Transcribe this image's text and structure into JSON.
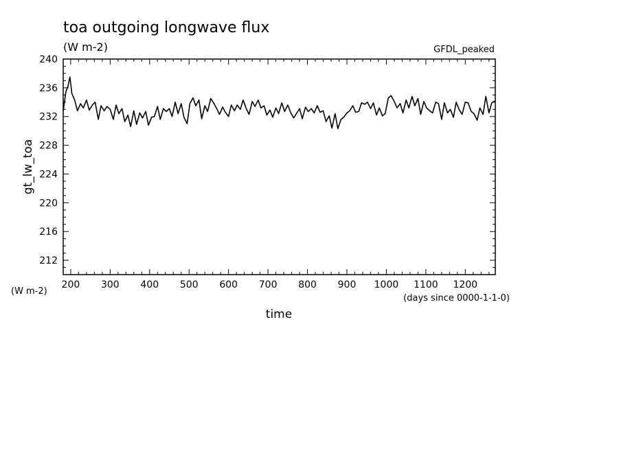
{
  "chart_data": {
    "type": "line",
    "title": "toa outgoing longwave flux",
    "units": "(W m-2)",
    "label_top_right": "GFDL_peaked",
    "ylabel": "gt_lw_toa",
    "ylabel_units": "(W m-2)",
    "xlabel": "time",
    "xlabel_units": "(days since 0000-1-1-0)",
    "xlim": [
      181,
      1276
    ],
    "ylim": [
      210,
      240
    ],
    "x_ticks": [
      200,
      300,
      400,
      500,
      600,
      700,
      800,
      900,
      1000,
      1100,
      1200
    ],
    "y_ticks": [
      212,
      216,
      220,
      224,
      228,
      232,
      236,
      240
    ],
    "grid": false,
    "series": [
      {
        "color": "#000000",
        "x": [
          181,
          188,
          193,
          198,
          203,
          210,
          217,
          225,
          232,
          240,
          247,
          255,
          262,
          270,
          277,
          285,
          292,
          300,
          308,
          315,
          322,
          330,
          337,
          345,
          352,
          360,
          367,
          375,
          382,
          390,
          397,
          405,
          412,
          420,
          427,
          435,
          442,
          450,
          457,
          465,
          472,
          480,
          487,
          495,
          502,
          510,
          517,
          525,
          532,
          540,
          547,
          555,
          562,
          570,
          577,
          585,
          592,
          600,
          607,
          615,
          622,
          630,
          637,
          645,
          652,
          660,
          667,
          675,
          682,
          690,
          697,
          705,
          712,
          720,
          727,
          735,
          742,
          750,
          757,
          765,
          772,
          780,
          787,
          795,
          802,
          810,
          817,
          825,
          832,
          840,
          847,
          855,
          862,
          870,
          877,
          885,
          892,
          900,
          907,
          915,
          922,
          930,
          937,
          945,
          952,
          960,
          967,
          975,
          982,
          990,
          997,
          1005,
          1012,
          1020,
          1027,
          1035,
          1042,
          1050,
          1057,
          1065,
          1072,
          1080,
          1087,
          1095,
          1102,
          1110,
          1117,
          1125,
          1132,
          1140,
          1147,
          1155,
          1162,
          1170,
          1177,
          1185,
          1192,
          1200,
          1207,
          1215,
          1222,
          1230,
          1237,
          1245,
          1252,
          1260,
          1267,
          1276
        ],
        "values": [
          232.8,
          235.5,
          236.2,
          237.5,
          235.2,
          234.3,
          232.8,
          233.8,
          233.2,
          234.3,
          232.9,
          233.6,
          234.0,
          231.6,
          233.5,
          232.8,
          233.4,
          233.0,
          231.6,
          233.6,
          232.4,
          233.1,
          231.3,
          232.2,
          230.6,
          232.8,
          230.9,
          232.5,
          231.8,
          232.7,
          230.8,
          231.9,
          232.0,
          233.4,
          231.6,
          233.1,
          232.7,
          233.1,
          232.0,
          234.0,
          232.4,
          233.8,
          231.9,
          231.0,
          233.8,
          234.6,
          233.5,
          234.3,
          231.7,
          233.5,
          232.7,
          234.5,
          233.9,
          233.1,
          232.3,
          233.3,
          232.6,
          232.0,
          233.6,
          232.8,
          233.6,
          233.0,
          234.3,
          233.1,
          232.3,
          234.1,
          233.4,
          234.3,
          233.2,
          233.5,
          232.2,
          232.9,
          231.9,
          233.2,
          232.4,
          233.9,
          232.7,
          233.6,
          232.6,
          231.8,
          232.4,
          233.1,
          231.7,
          233.3,
          232.7,
          233.1,
          232.5,
          233.5,
          232.6,
          232.8,
          231.3,
          232.1,
          230.4,
          232.4,
          230.3,
          231.6,
          231.9,
          232.5,
          232.8,
          233.5,
          232.6,
          232.7,
          233.9,
          233.7,
          234.0,
          233.1,
          233.9,
          232.2,
          233.2,
          232.1,
          232.4,
          234.6,
          234.9,
          234.1,
          233.2,
          233.8,
          232.5,
          234.3,
          233.2,
          234.8,
          233.5,
          234.5,
          232.3,
          234.1,
          233.2,
          232.8,
          232.5,
          234.0,
          233.8,
          231.6,
          233.9,
          232.5,
          233.0,
          231.9,
          234.0,
          232.9,
          232.3,
          234.0,
          233.9,
          232.7,
          232.4,
          231.5,
          233.2,
          232.3,
          234.8,
          232.5,
          233.9,
          234.2
        ]
      }
    ]
  }
}
